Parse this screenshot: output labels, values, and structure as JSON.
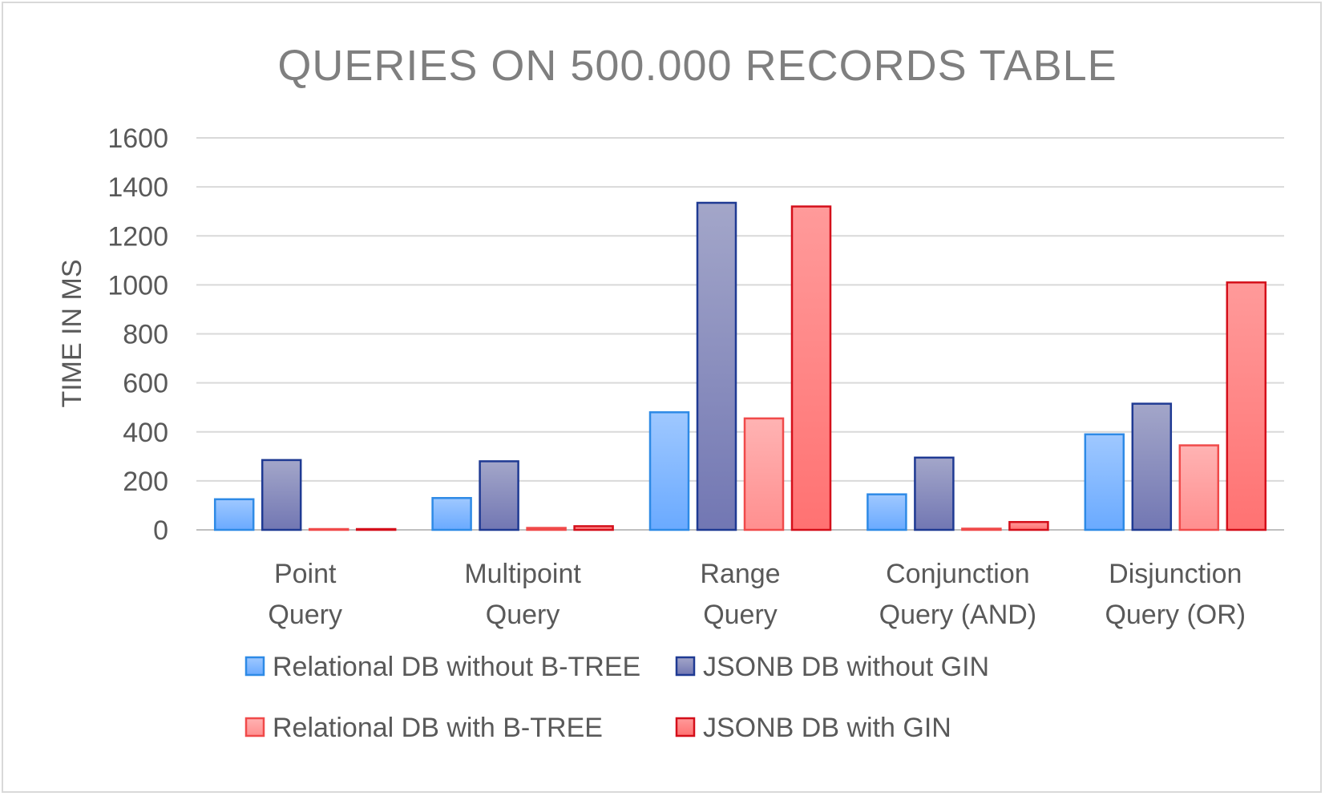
{
  "chart_data": {
    "type": "bar",
    "title": "QUERIES ON 500.000 RECORDS TABLE",
    "xlabel": "",
    "ylabel": "TIME IN MS",
    "ylim": [
      0,
      1600
    ],
    "yticks": [
      0,
      200,
      400,
      600,
      800,
      1000,
      1200,
      1400,
      1600
    ],
    "grid": true,
    "legend_position": "bottom",
    "categories": [
      [
        "Point",
        "Query"
      ],
      [
        "Multipoint",
        "Query"
      ],
      [
        "Range",
        "Query"
      ],
      [
        "Conjunction",
        "Query (AND)"
      ],
      [
        "Disjunction",
        "Query (OR)"
      ]
    ],
    "series": [
      {
        "name": "Relational DB without B-TREE",
        "values": [
          125,
          130,
          480,
          145,
          390
        ],
        "fill_top": "#9fc8ff",
        "fill_bottom": "#6aaaff",
        "stroke": "#2e8ae6"
      },
      {
        "name": "JSONB DB without GIN",
        "values": [
          285,
          280,
          1335,
          295,
          515
        ],
        "fill_top": "#a3a6c9",
        "fill_bottom": "#7277b3",
        "stroke": "#1f3a93"
      },
      {
        "name": "Relational DB with B-TREE",
        "values": [
          3,
          8,
          455,
          5,
          345
        ],
        "fill_top": "#ffb3b3",
        "fill_bottom": "#ff8f8f",
        "stroke": "#f04a4a"
      },
      {
        "name": "JSONB DB with GIN",
        "values": [
          3,
          15,
          1320,
          32,
          1010
        ],
        "fill_top": "#ff9a9a",
        "fill_bottom": "#ff7272",
        "stroke": "#d40f1a"
      }
    ]
  }
}
